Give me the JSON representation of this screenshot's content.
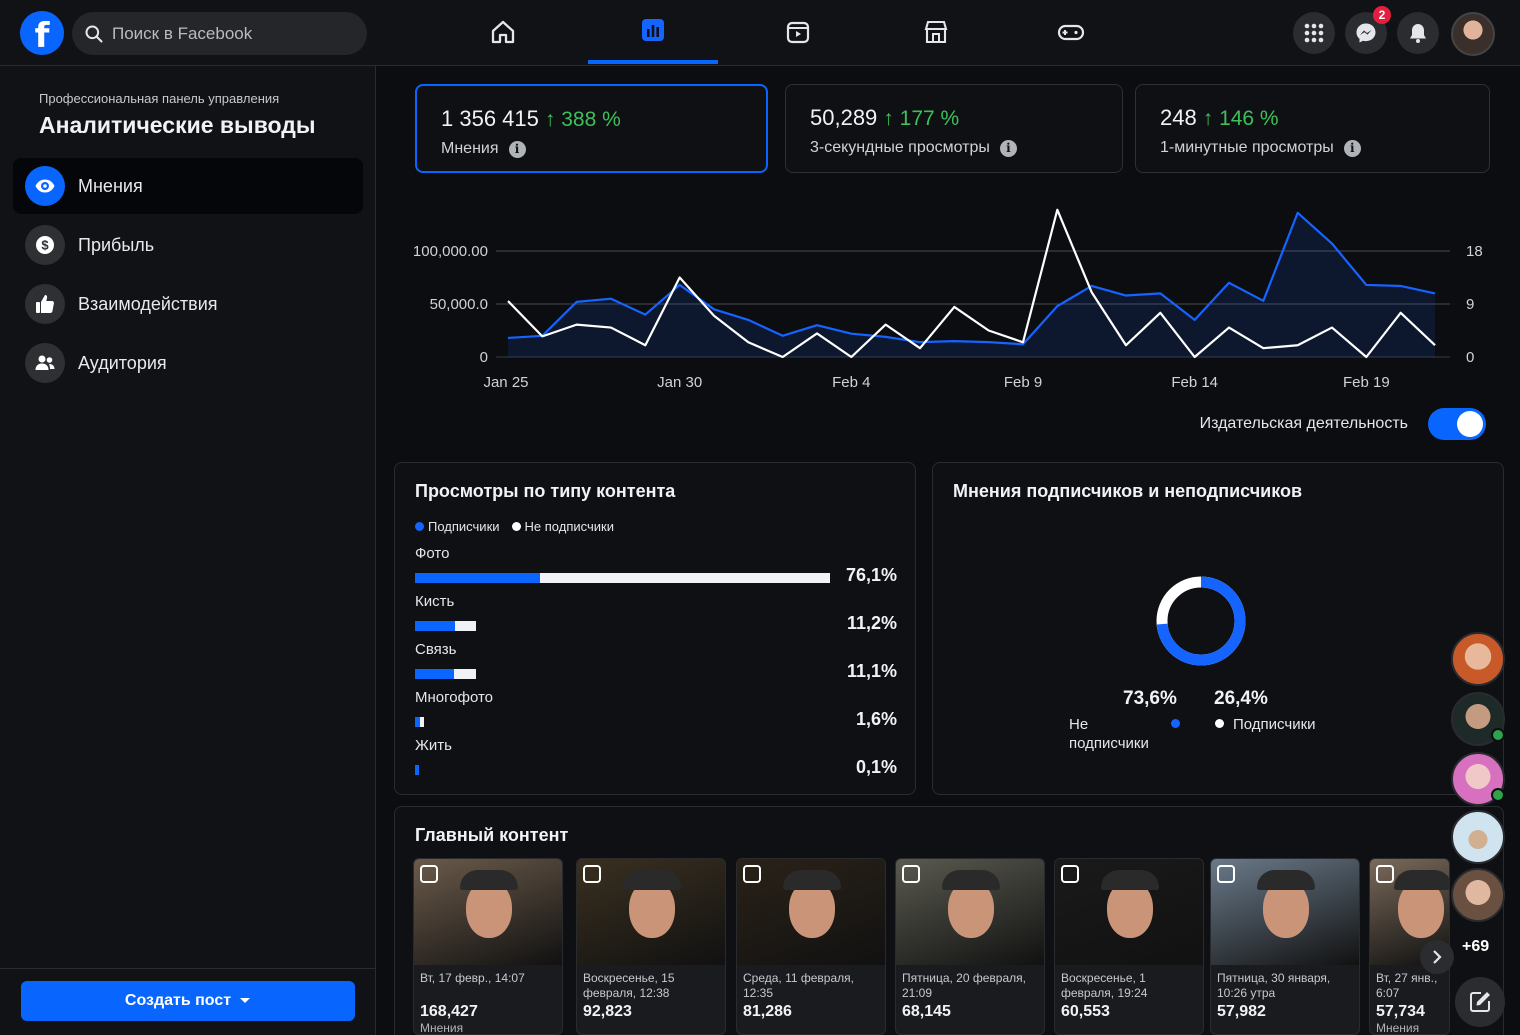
{
  "topbar": {
    "search_placeholder": "Поиск в Facebook",
    "messenger_badge": "2",
    "nav_icons": [
      "home-icon",
      "insights-icon",
      "video-icon",
      "marketplace-icon",
      "gaming-icon"
    ],
    "active_tab": "insights-icon"
  },
  "sidebar": {
    "subtitle": "Профессиональная панель управления",
    "title": "Аналитические выводы",
    "items": [
      {
        "label": "Мнения",
        "icon": "eye-icon"
      },
      {
        "label": "Прибыль",
        "icon": "dollar-icon"
      },
      {
        "label": "Взаимодействия",
        "icon": "thumbs-up-icon"
      },
      {
        "label": "Аудитория",
        "icon": "people-icon"
      }
    ],
    "create_button": "Создать пост"
  },
  "metrics": [
    {
      "value": "1 356 415",
      "change": "388 %",
      "label": "Мнения"
    },
    {
      "value": "50,289",
      "change": "177 %",
      "label": "3-секундные просмотры"
    },
    {
      "value": "248",
      "change": "146 %",
      "label": "1-минутные просмотры"
    }
  ],
  "chart_data": {
    "type": "line",
    "x_labels": [
      "Jan 25",
      "Jan 30",
      "Feb 4",
      "Feb 9",
      "Feb 14",
      "Feb 19"
    ],
    "left_ticks": [
      "100,000.00",
      "50,000.0",
      "0"
    ],
    "right_ticks": [
      "18",
      "9",
      "0"
    ],
    "series": [
      {
        "axis": "left",
        "color": "#1664ff",
        "values": [
          18000,
          20000,
          52000,
          55000,
          40000,
          68000,
          45000,
          35000,
          20000,
          30000,
          22000,
          19000,
          14000,
          15000,
          14000,
          12000,
          48000,
          67000,
          58000,
          60000,
          35000,
          70000,
          53000,
          136000,
          107000,
          68000,
          67000,
          60000
        ]
      },
      {
        "axis": "right",
        "color": "#ffffff",
        "values": [
          9.5,
          3.5,
          5.5,
          5,
          2,
          13.5,
          7,
          2.5,
          0,
          4,
          0,
          5.5,
          1.5,
          8.5,
          4.5,
          2.5,
          25,
          11,
          2,
          7.5,
          0,
          5,
          1.5,
          2,
          5,
          0,
          7.5,
          2
        ]
      }
    ]
  },
  "toggle": {
    "label": "Издательская деятельность",
    "on": true
  },
  "content_types": {
    "title": "Просмотры по типу контента",
    "legend": [
      "Подписчики",
      "Не подписчики"
    ],
    "rows": [
      {
        "name": "Фото",
        "pct": "76,1%",
        "blue": 30,
        "white": 70,
        "scale": 100
      },
      {
        "name": "Кисть",
        "pct": "11,2%",
        "blue": 65,
        "white": 35,
        "scale": 14.7
      },
      {
        "name": "Связь",
        "pct": "11,1%",
        "blue": 65,
        "white": 35,
        "scale": 14.6
      },
      {
        "name": "Многофото",
        "pct": "1,6%",
        "blue": 50,
        "white": 50,
        "scale": 2.2
      },
      {
        "name": "Жить",
        "pct": "0,1%",
        "blue": 100,
        "white": 0,
        "scale": 0.5
      }
    ]
  },
  "followers": {
    "title": "Мнения подписчиков и неподписчиков",
    "non_followers_pct": "73,6%",
    "non_followers_label": "Не подписчики",
    "followers_pct": "26,4%",
    "followers_label": "Подписчики",
    "colors": {
      "non_followers": "#1664ff",
      "followers": "#ffffff"
    }
  },
  "top_content": {
    "title": "Главный контент",
    "items": [
      {
        "date": "Вт, 17 февр., 14:07",
        "value": "168,427",
        "sub": "Мнения",
        "bg": "#6b5a4a"
      },
      {
        "date": "Воскресенье, 15 февраля, 12:38",
        "value": "92,823",
        "sub": "",
        "bg": "#3a3020"
      },
      {
        "date": "Среда, 11 февраля, 12:35",
        "value": "81,286",
        "sub": "",
        "bg": "#2a2218"
      },
      {
        "date": "Пятница, 20 февраля, 21:09",
        "value": "68,145",
        "sub": "",
        "bg": "#5a5a50"
      },
      {
        "date": "Воскресенье, 1 февраля, 19:24",
        "value": "60,553",
        "sub": "",
        "bg": "#1a1a1a"
      },
      {
        "date": "Пятница, 30 января, 10:26 утра",
        "value": "57,982",
        "sub": "",
        "bg": "#6a7a8a"
      },
      {
        "date": "Вт, 27 янв., 6:07",
        "value": "57,734",
        "sub": "Мнения",
        "bg": "#7a6a5a"
      }
    ]
  },
  "chat": {
    "more_count": "+69"
  }
}
